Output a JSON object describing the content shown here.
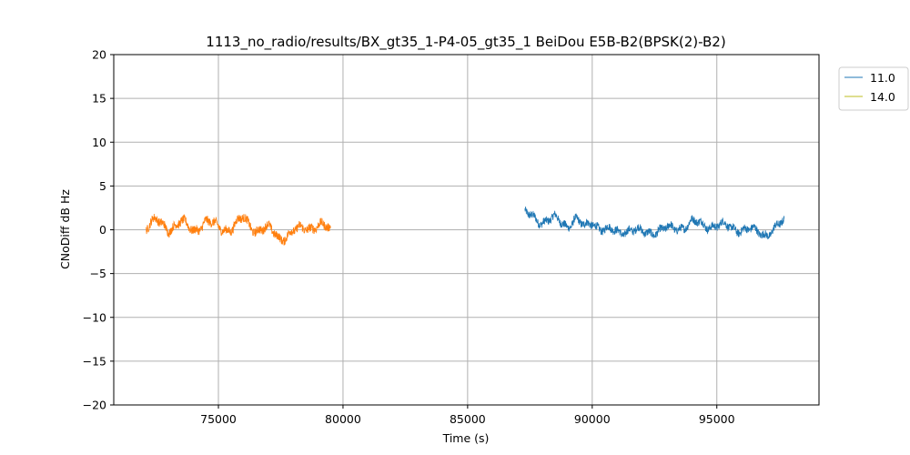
{
  "chart_data": {
    "type": "line",
    "title": "1113_no_radio/results/BX_gt35_1-P4-05_gt35_1 BeiDou E5B-B2(BPSK(2)-B2)",
    "xlabel": "Time (s)",
    "ylabel": "CNoDiff dB Hz",
    "xlim": [
      70800,
      99100
    ],
    "ylim": [
      -20,
      20
    ],
    "x_ticks": [
      75000,
      80000,
      85000,
      90000,
      95000
    ],
    "x_tick_labels": [
      "75000",
      "80000",
      "85000",
      "90000",
      "95000"
    ],
    "y_ticks": [
      -20,
      -15,
      -10,
      -5,
      0,
      5,
      10,
      15,
      20
    ],
    "y_tick_labels": [
      "−20",
      "−15",
      "−10",
      "−5",
      "0",
      "5",
      "10",
      "15",
      "20"
    ],
    "grid": true,
    "legend_position": "upper-right-outside",
    "series": [
      {
        "name": "11.0",
        "color": "#1f77b4",
        "x": [
          87300,
          87600,
          88000,
          88500,
          89000,
          89300,
          89700,
          90000,
          90500,
          91000,
          91500,
          92000,
          92500,
          93000,
          93500,
          94000,
          94500,
          95000,
          95500,
          96000,
          96500,
          97000,
          97400,
          97700
        ],
        "y": [
          1.8,
          1.5,
          1.0,
          1.2,
          0.5,
          1.3,
          0.2,
          0.9,
          0.0,
          -0.3,
          0.1,
          -0.4,
          -0.1,
          0.0,
          0.3,
          0.8,
          0.6,
          0.5,
          0.3,
          0.1,
          -0.2,
          -0.4,
          0.2,
          0.9
        ],
        "noise": 0.45
      },
      {
        "name": "14.0",
        "color": "#ff7f0e",
        "legend_color": "#bcbd22",
        "x": [
          72100,
          72500,
          73000,
          73500,
          74000,
          74500,
          75000,
          75500,
          76000,
          76500,
          77000,
          77500,
          78000,
          78500,
          79000,
          79500
        ],
        "y": [
          0.3,
          1.0,
          0.2,
          0.8,
          0.0,
          0.9,
          0.3,
          0.1,
          1.3,
          0.0,
          0.1,
          -0.9,
          -0.3,
          0.3,
          0.5,
          0.0
        ],
        "noise": 0.5
      }
    ]
  }
}
